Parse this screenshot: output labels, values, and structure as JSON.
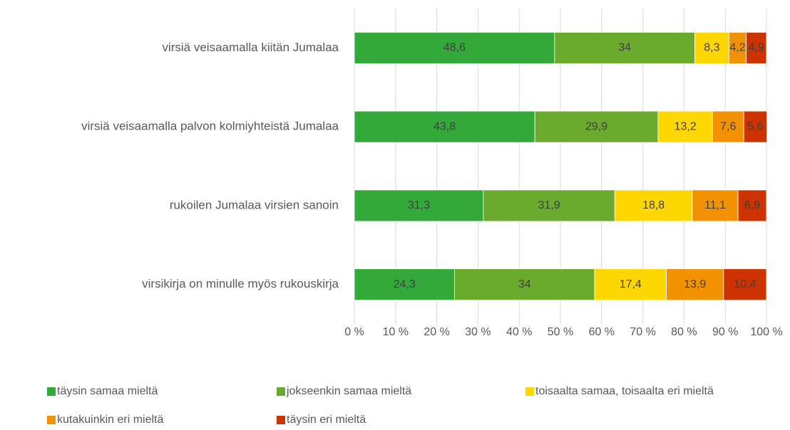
{
  "chart_data": {
    "type": "stacked_barh",
    "categories": [
      "virsiä veisaamalla kiitän Jumalaa",
      "virsiä veisaamalla palvon kolmiyhteistä Jumalaa",
      "rukoilen Jumalaa virsien sanoin",
      "virsikirja on minulle myös rukouskirja"
    ],
    "series": [
      {
        "name": "täysin samaa mieltä",
        "color": "#33a93a",
        "values": [
          48.6,
          43.8,
          31.3,
          24.3
        ],
        "value_labels": [
          "48,6",
          "43,8",
          "31,3",
          "24,3"
        ]
      },
      {
        "name": "jokseenkin samaa mieltä",
        "color": "#6aab2e",
        "values": [
          34,
          29.9,
          31.9,
          34
        ],
        "value_labels": [
          "34",
          "29,9",
          "31,9",
          "34"
        ]
      },
      {
        "name": "toisaalta samaa, toisaalta eri mieltä",
        "color": "#ffd700",
        "values": [
          8.3,
          13.2,
          18.8,
          17.4
        ],
        "value_labels": [
          "8,3",
          "13,2",
          "18,8",
          "17,4"
        ]
      },
      {
        "name": "kutakuinkin eri mieltä",
        "color": "#f39200",
        "values": [
          4.2,
          7.6,
          11.1,
          13.9
        ],
        "value_labels": [
          "4,2",
          "7,6",
          "11,1",
          "13,9"
        ]
      },
      {
        "name": "täysin eri mieltä",
        "color": "#cc3300",
        "values": [
          4.9,
          5.6,
          6.9,
          10.4
        ],
        "value_labels": [
          "4,9",
          "5,6",
          "6,9",
          "10,4"
        ]
      }
    ],
    "xlim": [
      0,
      100
    ],
    "xticks": [
      {
        "value": 0,
        "label": "0 %"
      },
      {
        "value": 10,
        "label": "10 %"
      },
      {
        "value": 20,
        "label": "20 %"
      },
      {
        "value": 30,
        "label": "30 %"
      },
      {
        "value": 40,
        "label": "40 %"
      },
      {
        "value": 50,
        "label": "50 %"
      },
      {
        "value": 60,
        "label": "60 %"
      },
      {
        "value": 70,
        "label": "70 %"
      },
      {
        "value": 80,
        "label": "80 %"
      },
      {
        "value": 90,
        "label": "90 %"
      },
      {
        "value": 100,
        "label": "100 %"
      }
    ],
    "grid": true,
    "legend": "bottom"
  }
}
